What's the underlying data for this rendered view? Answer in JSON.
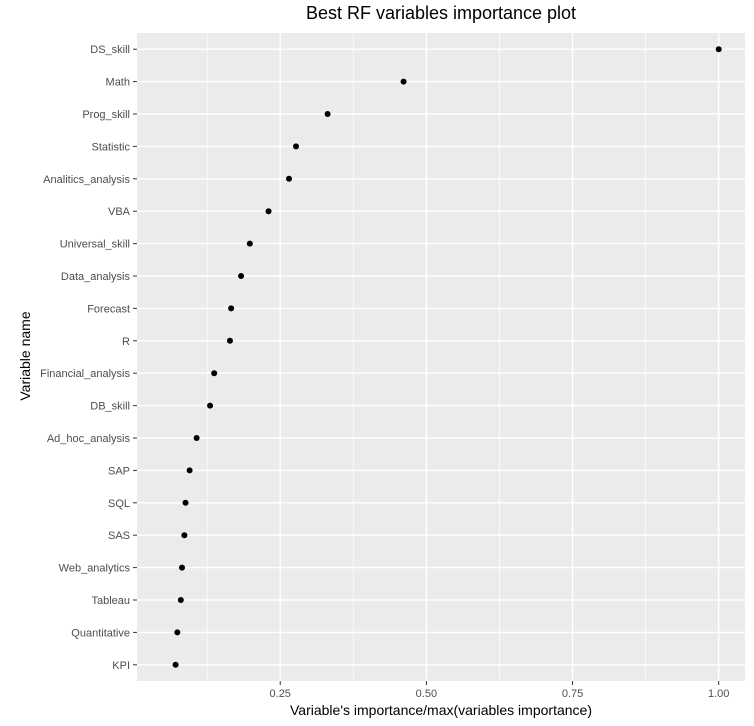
{
  "chart_data": {
    "type": "scatter",
    "title": "Best RF variables importance plot",
    "xlabel": "Variable's importance/max(variables importance)",
    "ylabel": "Variable name",
    "xlim": [
      0.005,
      1.045
    ],
    "x_ticks": [
      0.25,
      0.5,
      0.75,
      1.0
    ],
    "x_tick_labels": [
      "0.25",
      "0.50",
      "0.75",
      "1.00"
    ],
    "grid": true,
    "panel_background": "#ebebeb",
    "grid_color": "#ffffff",
    "point_color": "#000000",
    "categories": [
      "DS_skill",
      "Math",
      "Prog_skill",
      "Statistic",
      "Analitics_analysis",
      "VBA",
      "Universal_skill",
      "Data_analysis",
      "Forecast",
      "R",
      "Financial_analysis",
      "DB_skill",
      "Ad_hoc_analysis",
      "SAP",
      "SQL",
      "SAS",
      "Web_analytics",
      "Tableau",
      "Quantitative",
      "KPI"
    ],
    "values": [
      1.0,
      0.461,
      0.331,
      0.277,
      0.265,
      0.23,
      0.198,
      0.183,
      0.166,
      0.164,
      0.137,
      0.13,
      0.107,
      0.095,
      0.088,
      0.086,
      0.082,
      0.08,
      0.074,
      0.071
    ]
  }
}
